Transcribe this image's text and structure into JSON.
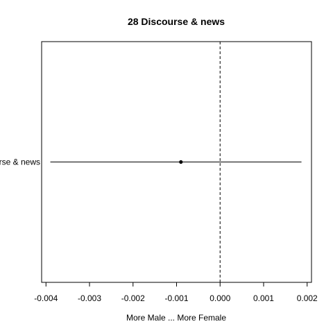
{
  "chart_data": {
    "type": "scatter",
    "title": "28 Discourse & news",
    "xlabel": "More Male ... More Female",
    "ylabel": "",
    "xlim": [
      -0.0041,
      0.0021
    ],
    "xticks": [
      -0.004,
      -0.003,
      -0.002,
      -0.001,
      0.0,
      0.001,
      0.002
    ],
    "xtick_labels": [
      "-0.004",
      "-0.003",
      "-0.002",
      "-0.001",
      "0.000",
      "0.001",
      "0.002"
    ],
    "reference_line_x": 0,
    "categories": [
      "Discourse & news"
    ],
    "points": [
      {
        "category": "Discourse & news",
        "estimate": -0.0009,
        "lower": -0.0039,
        "upper": 0.00187
      }
    ],
    "grid": false,
    "legend": "none"
  }
}
